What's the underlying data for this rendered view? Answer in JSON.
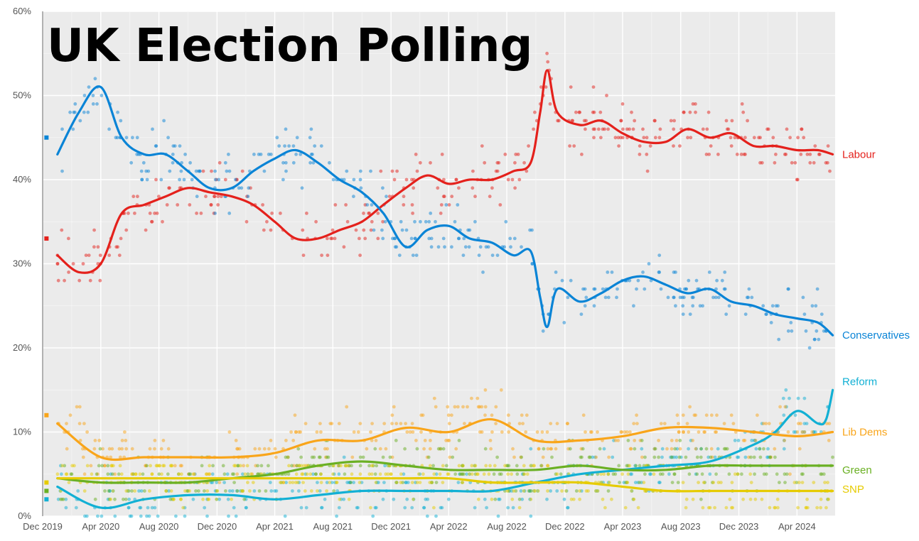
{
  "chart_data": {
    "type": "scatter",
    "title": "UK Election Polling",
    "xlabel": "",
    "ylabel": "",
    "ylim": [
      0,
      60
    ],
    "xlim": [
      "2019-12-01",
      "2024-06-20"
    ],
    "y_ticks": [
      0,
      10,
      20,
      30,
      40,
      50,
      60
    ],
    "y_tick_labels": [
      "0%",
      "10%",
      "20%",
      "30%",
      "40%",
      "50%",
      "60%"
    ],
    "x_ticks": [
      "2019-12-01",
      "2020-04-01",
      "2020-08-01",
      "2020-12-01",
      "2021-04-01",
      "2021-08-01",
      "2021-12-01",
      "2022-04-01",
      "2022-08-01",
      "2022-12-01",
      "2023-04-01",
      "2023-08-01",
      "2023-12-01",
      "2024-04-01"
    ],
    "x_tick_labels": [
      "Dec 2019",
      "Apr 2020",
      "Aug 2020",
      "Dec 2020",
      "Apr 2021",
      "Aug 2021",
      "Dec 2021",
      "Apr 2022",
      "Aug 2022",
      "Dec 2022",
      "Apr 2023",
      "Aug 2023",
      "Dec 2023",
      "Apr 2024"
    ],
    "grid": true,
    "legend": "direct labels at right end",
    "election_result_dates": "2019-12-12",
    "series": [
      {
        "name": "Labour",
        "color": "#e4211c",
        "election_2019": 33,
        "x": [
          "2020-01-01",
          "2020-02-15",
          "2020-04-01",
          "2020-05-15",
          "2020-07-01",
          "2020-08-15",
          "2020-10-01",
          "2020-11-15",
          "2021-01-01",
          "2021-02-15",
          "2021-04-01",
          "2021-05-15",
          "2021-07-01",
          "2021-08-15",
          "2021-10-01",
          "2021-11-15",
          "2022-01-01",
          "2022-02-15",
          "2022-04-01",
          "2022-05-15",
          "2022-07-01",
          "2022-08-15",
          "2022-09-20",
          "2022-10-10",
          "2022-10-25",
          "2022-11-15",
          "2023-01-01",
          "2023-02-15",
          "2023-04-01",
          "2023-05-15",
          "2023-07-01",
          "2023-08-15",
          "2023-10-01",
          "2023-11-15",
          "2024-01-01",
          "2024-02-15",
          "2024-04-01",
          "2024-05-15",
          "2024-06-15"
        ],
        "y": [
          31,
          29,
          30,
          36,
          37,
          38,
          39,
          38.5,
          38,
          37,
          35,
          33,
          33,
          34,
          35,
          37,
          39,
          40.5,
          39.5,
          40,
          40,
          41,
          42,
          48,
          53,
          48,
          46.5,
          47,
          45.5,
          44.5,
          44.5,
          46,
          45,
          45.5,
          44,
          44,
          43.5,
          43.5,
          43
        ],
        "poll_range": [
          28,
          57
        ]
      },
      {
        "name": "Conservatives",
        "color": "#0a84d6",
        "election_2019": 45,
        "x": [
          "2020-01-01",
          "2020-02-15",
          "2020-04-01",
          "2020-05-15",
          "2020-07-01",
          "2020-08-15",
          "2020-10-01",
          "2020-11-15",
          "2021-01-01",
          "2021-02-15",
          "2021-04-01",
          "2021-05-15",
          "2021-07-01",
          "2021-08-15",
          "2021-10-01",
          "2021-11-15",
          "2022-01-01",
          "2022-02-15",
          "2022-04-01",
          "2022-05-15",
          "2022-07-01",
          "2022-08-15",
          "2022-09-20",
          "2022-10-10",
          "2022-10-25",
          "2022-11-15",
          "2023-01-01",
          "2023-02-15",
          "2023-04-01",
          "2023-05-15",
          "2023-07-01",
          "2023-08-15",
          "2023-10-01",
          "2023-11-15",
          "2024-01-01",
          "2024-02-15",
          "2024-04-01",
          "2024-05-15",
          "2024-06-15"
        ],
        "y": [
          43,
          48,
          51,
          45,
          43,
          43,
          41,
          39,
          39,
          41,
          42.5,
          43.5,
          42,
          40,
          38.5,
          36,
          32,
          34,
          34.5,
          33,
          32.5,
          31,
          31.5,
          26,
          22.5,
          27,
          25.5,
          26.5,
          28,
          28.5,
          27.5,
          26.5,
          27,
          25.5,
          25,
          24,
          23.5,
          23,
          21.5
        ],
        "poll_range": [
          19,
          55
        ]
      },
      {
        "name": "Reform",
        "color": "#12b0d4",
        "election_2019": 2,
        "x": [
          "2020-01-01",
          "2020-04-01",
          "2020-07-01",
          "2020-10-01",
          "2021-01-01",
          "2021-04-01",
          "2021-07-01",
          "2021-10-01",
          "2022-01-01",
          "2022-04-01",
          "2022-07-01",
          "2022-10-01",
          "2023-01-01",
          "2023-04-01",
          "2023-07-01",
          "2023-10-01",
          "2024-01-01",
          "2024-02-15",
          "2024-04-01",
          "2024-05-15",
          "2024-06-01",
          "2024-06-15"
        ],
        "y": [
          3.5,
          1,
          2,
          2.5,
          2.5,
          2,
          2.5,
          3,
          3,
          3,
          3,
          4,
          5,
          5.5,
          6,
          6.5,
          8.5,
          10,
          12.5,
          11,
          11.5,
          15
        ],
        "poll_range": [
          0,
          17
        ]
      },
      {
        "name": "Lib Dems",
        "color": "#f9a51a",
        "election_2019": 12,
        "x": [
          "2020-01-01",
          "2020-04-01",
          "2020-07-01",
          "2020-10-01",
          "2021-01-01",
          "2021-04-01",
          "2021-07-01",
          "2021-10-01",
          "2022-01-01",
          "2022-04-01",
          "2022-07-01",
          "2022-10-01",
          "2023-01-01",
          "2023-04-01",
          "2023-07-01",
          "2023-10-01",
          "2024-01-01",
          "2024-04-01",
          "2024-06-15"
        ],
        "y": [
          11,
          7,
          7,
          7,
          7,
          7.5,
          9,
          9,
          10.5,
          10,
          11.5,
          9,
          9,
          9.5,
          10.5,
          10.5,
          10,
          9.5,
          10
        ],
        "poll_range": [
          4,
          16
        ]
      },
      {
        "name": "Green",
        "color": "#6ab023",
        "election_2019": 3,
        "x": [
          "2020-01-01",
          "2020-04-01",
          "2020-07-01",
          "2020-10-01",
          "2021-01-01",
          "2021-04-01",
          "2021-07-01",
          "2021-10-01",
          "2022-01-01",
          "2022-04-01",
          "2022-07-01",
          "2022-10-01",
          "2023-01-01",
          "2023-04-01",
          "2023-07-01",
          "2023-10-01",
          "2024-01-01",
          "2024-04-01",
          "2024-06-15"
        ],
        "y": [
          4.5,
          4,
          4,
          4,
          4.5,
          5,
          6,
          6.5,
          6,
          5.5,
          5.5,
          5.5,
          6,
          5.5,
          5.5,
          6,
          6,
          6,
          6
        ],
        "poll_range": [
          2,
          9
        ]
      },
      {
        "name": "SNP",
        "color": "#e6cb00",
        "election_2019": 4,
        "x": [
          "2020-01-01",
          "2020-04-01",
          "2020-07-01",
          "2020-10-01",
          "2021-01-01",
          "2021-04-01",
          "2021-07-01",
          "2021-10-01",
          "2022-01-01",
          "2022-04-01",
          "2022-07-01",
          "2022-10-01",
          "2023-01-01",
          "2023-04-01",
          "2023-07-01",
          "2023-10-01",
          "2024-01-01",
          "2024-04-01",
          "2024-06-15"
        ],
        "y": [
          4.5,
          4.5,
          4.5,
          4.5,
          4.5,
          4.5,
          4.5,
          4.5,
          4.5,
          4.5,
          4,
          4,
          4,
          3.5,
          3,
          3,
          3,
          3,
          3
        ],
        "poll_range": [
          1,
          6
        ]
      }
    ]
  }
}
